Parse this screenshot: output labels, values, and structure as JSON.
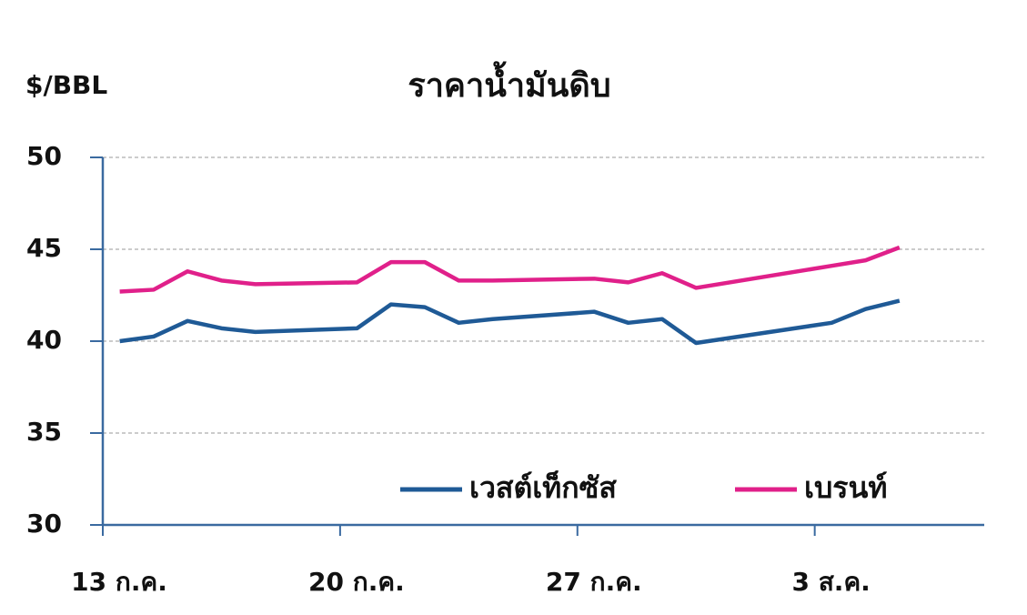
{
  "chart_data": {
    "type": "line",
    "title": "ราคาน้ำมันดิบ",
    "y_label": "$/BBL",
    "x": [
      13,
      14,
      15,
      16,
      17,
      20,
      21,
      22,
      23,
      24,
      27,
      28,
      29,
      30,
      34,
      35,
      36
    ],
    "xlim": [
      12.5,
      38.5
    ],
    "xticks": [
      {
        "value": 12.5,
        "label": "13 ก.ค."
      },
      {
        "value": 19.5,
        "label": "20 ก.ค."
      },
      {
        "value": 26.5,
        "label": "27 ก.ค."
      },
      {
        "value": 33.5,
        "label": "3 ส.ค."
      }
    ],
    "ylim": [
      30,
      50
    ],
    "yticks": [
      30,
      35,
      40,
      45,
      50
    ],
    "grid": true,
    "legend": "bottom-right",
    "series": [
      {
        "name": "เวสต์เท็กซัส",
        "color": "#1f5a96",
        "values": [
          40.0,
          40.25,
          41.1,
          40.7,
          40.5,
          40.7,
          42.0,
          41.85,
          41.0,
          41.2,
          41.6,
          41.0,
          41.2,
          39.9,
          41.0,
          41.75,
          42.2
        ]
      },
      {
        "name": "เบรนท์",
        "color": "#e0208a",
        "values": [
          42.7,
          42.8,
          43.8,
          43.3,
          43.1,
          43.2,
          44.3,
          44.3,
          43.3,
          43.3,
          43.4,
          43.2,
          43.7,
          42.9,
          44.1,
          44.4,
          45.1
        ]
      }
    ]
  }
}
